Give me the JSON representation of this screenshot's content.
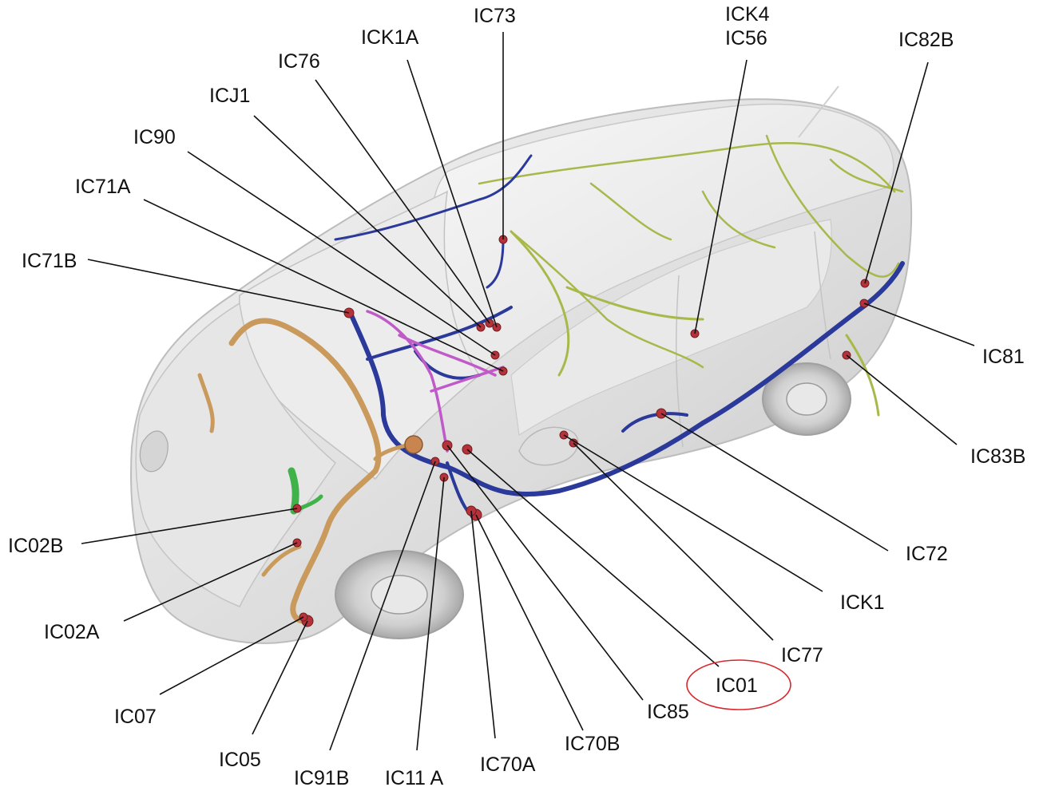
{
  "diagram": {
    "labels": {
      "ic73": "IC73",
      "ick4": "ICK4",
      "ic56": "IC56",
      "ic82b": "IC82B",
      "ick1a": "ICK1A",
      "ic76": "IC76",
      "icj1": "ICJ1",
      "ic90": "IC90",
      "ic71a": "IC71A",
      "ic71b": "IC71B",
      "ic81": "IC81",
      "ic83b": "IC83B",
      "ic72": "IC72",
      "ick1": "ICK1",
      "ic77": "IC77",
      "ic01": "IC01",
      "ic85": "IC85",
      "ic70b": "IC70B",
      "ic70a": "IC70A",
      "ic11a": "IC11 A",
      "ic91b": "IC91B",
      "ic05": "IC05",
      "ic07": "IC07",
      "ic02a": "IC02A",
      "ic02b": "IC02B"
    },
    "highlight": {
      "label": "ic01",
      "color": "#d9262c"
    },
    "colors": {
      "harness_main": "#2b3a9a",
      "harness_engine": "#c99a5b",
      "harness_roof": "#a9b84a",
      "harness_door": "#c05ac8",
      "harness_front": "#3fb34a",
      "connector": "#b5323a"
    }
  }
}
